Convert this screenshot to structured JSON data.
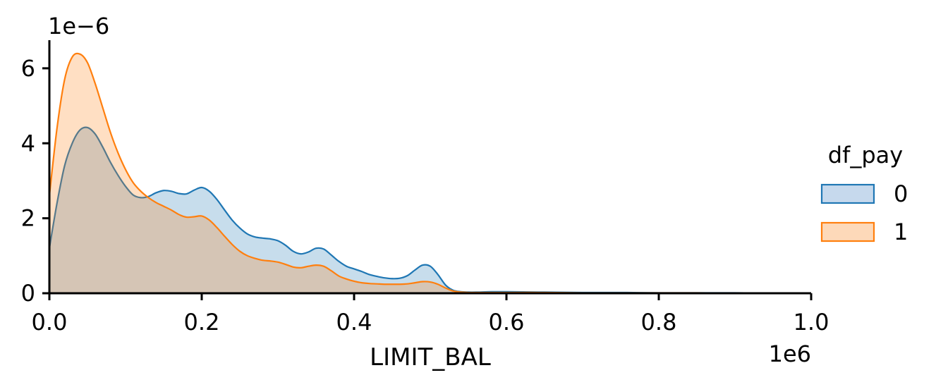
{
  "chart_data": {
    "type": "area",
    "title": "",
    "xlabel": "LIMIT_BAL",
    "ylabel": "",
    "x_offset_label": "1e6",
    "y_offset_label": "1e−6",
    "xlim": [
      0,
      1.0
    ],
    "ylim": [
      0,
      6.75
    ],
    "x_ticks": [
      0.0,
      0.2,
      0.4,
      0.6,
      0.8,
      1.0
    ],
    "x_tick_labels": [
      "0.0",
      "0.2",
      "0.4",
      "0.6",
      "0.8",
      "1.0"
    ],
    "y_ticks": [
      0,
      2,
      4,
      6
    ],
    "y_tick_labels": [
      "0",
      "2",
      "4",
      "6"
    ],
    "grid": false,
    "legend": {
      "title": "df_pay",
      "placement": "right",
      "entries": [
        "0",
        "1"
      ]
    },
    "series": [
      {
        "name": "0",
        "color": "#1f77b4",
        "fill": "#c6d9ed",
        "x": [
          0.0,
          0.01,
          0.02,
          0.03,
          0.04,
          0.05,
          0.06,
          0.07,
          0.08,
          0.09,
          0.1,
          0.11,
          0.12,
          0.13,
          0.14,
          0.15,
          0.16,
          0.17,
          0.18,
          0.19,
          0.2,
          0.21,
          0.22,
          0.23,
          0.24,
          0.25,
          0.26,
          0.27,
          0.28,
          0.29,
          0.3,
          0.31,
          0.32,
          0.33,
          0.34,
          0.35,
          0.36,
          0.37,
          0.38,
          0.39,
          0.4,
          0.41,
          0.42,
          0.43,
          0.44,
          0.45,
          0.46,
          0.47,
          0.48,
          0.49,
          0.5,
          0.51,
          0.52,
          0.53,
          0.54,
          0.55,
          0.56,
          0.58,
          0.6,
          0.65,
          0.7,
          0.75,
          0.8,
          0.85,
          0.9,
          0.95,
          1.0
        ],
        "values": [
          1.2,
          2.4,
          3.4,
          4.0,
          4.35,
          4.42,
          4.25,
          3.9,
          3.5,
          3.15,
          2.85,
          2.62,
          2.55,
          2.58,
          2.68,
          2.74,
          2.72,
          2.66,
          2.65,
          2.75,
          2.82,
          2.72,
          2.5,
          2.22,
          1.95,
          1.74,
          1.58,
          1.5,
          1.47,
          1.45,
          1.4,
          1.28,
          1.12,
          1.05,
          1.1,
          1.2,
          1.18,
          1.02,
          0.85,
          0.72,
          0.65,
          0.58,
          0.5,
          0.45,
          0.41,
          0.39,
          0.4,
          0.47,
          0.62,
          0.75,
          0.72,
          0.5,
          0.22,
          0.08,
          0.04,
          0.03,
          0.03,
          0.04,
          0.04,
          0.03,
          0.02,
          0.02,
          0.01,
          0.01,
          0.01,
          0.0,
          0.0
        ]
      },
      {
        "name": "1",
        "color": "#ff7f0e",
        "fill": "#fdd9b9",
        "x": [
          0.0,
          0.01,
          0.02,
          0.03,
          0.04,
          0.05,
          0.06,
          0.07,
          0.08,
          0.09,
          0.1,
          0.11,
          0.12,
          0.13,
          0.14,
          0.15,
          0.16,
          0.17,
          0.18,
          0.19,
          0.2,
          0.21,
          0.22,
          0.23,
          0.24,
          0.25,
          0.26,
          0.27,
          0.28,
          0.29,
          0.3,
          0.31,
          0.32,
          0.33,
          0.34,
          0.35,
          0.36,
          0.37,
          0.38,
          0.39,
          0.4,
          0.41,
          0.42,
          0.43,
          0.44,
          0.45,
          0.46,
          0.47,
          0.48,
          0.49,
          0.5,
          0.51,
          0.52,
          0.53,
          0.54,
          0.55,
          0.56,
          0.58,
          0.6,
          0.65,
          0.7,
          0.75,
          0.8,
          0.85,
          0.9,
          0.95,
          1.0
        ],
        "values": [
          2.6,
          4.4,
          5.7,
          6.3,
          6.38,
          6.15,
          5.6,
          4.95,
          4.3,
          3.75,
          3.3,
          2.95,
          2.72,
          2.55,
          2.42,
          2.32,
          2.22,
          2.1,
          2.03,
          2.04,
          2.06,
          1.95,
          1.75,
          1.52,
          1.3,
          1.12,
          1.0,
          0.93,
          0.88,
          0.86,
          0.83,
          0.77,
          0.7,
          0.68,
          0.72,
          0.75,
          0.72,
          0.6,
          0.46,
          0.38,
          0.32,
          0.28,
          0.26,
          0.25,
          0.24,
          0.24,
          0.24,
          0.25,
          0.28,
          0.31,
          0.3,
          0.24,
          0.14,
          0.06,
          0.03,
          0.02,
          0.02,
          0.02,
          0.02,
          0.02,
          0.01,
          0.01,
          0.01,
          0.01,
          0.0,
          0.0,
          0.0
        ]
      }
    ]
  }
}
